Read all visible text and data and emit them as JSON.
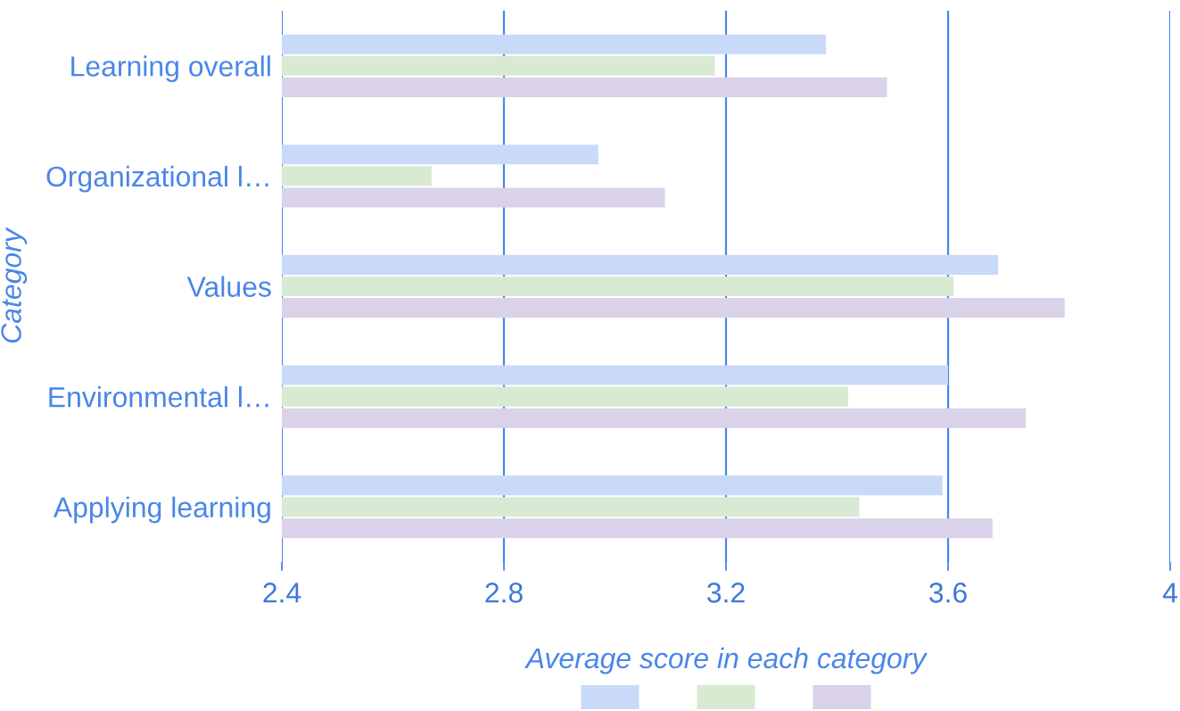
{
  "chart_data": {
    "type": "bar",
    "orientation": "horizontal",
    "categories": [
      "Learning overall",
      "Organizational l…",
      "Values",
      "Environmental l…",
      "Applying learning"
    ],
    "series": [
      {
        "color": "#c9daf8",
        "values": [
          3.38,
          2.97,
          3.69,
          3.6,
          3.59
        ]
      },
      {
        "color": "#d9ead3",
        "values": [
          3.18,
          2.67,
          3.61,
          3.42,
          3.44
        ]
      },
      {
        "color": "#d9d2e9",
        "values": [
          3.49,
          3.09,
          3.81,
          3.74,
          3.68
        ]
      }
    ],
    "xlim": [
      2.4,
      4
    ],
    "xticks": [
      2.4,
      2.8,
      3.2,
      3.6,
      4
    ],
    "xlabel": "Average score in each category",
    "ylabel": "Category",
    "grid": "x"
  }
}
